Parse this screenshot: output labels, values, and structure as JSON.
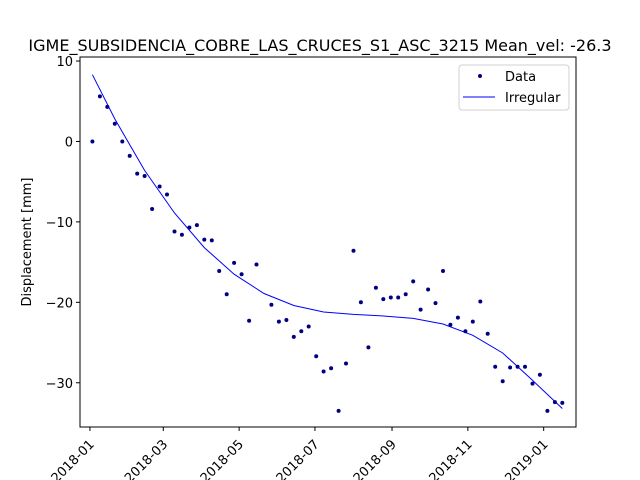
{
  "chart_data": {
    "type": "scatter",
    "title": "IGME_SUBSIDENCIA_COBRE_LAS_CRUCES_S1_ASC_3215     Mean_vel: -26.3",
    "xlabel": "",
    "ylabel": "Displacement [mm]",
    "xlim": [
      "2017-12-24",
      "2019-01-27"
    ],
    "ylim": [
      -35.5,
      10.5
    ],
    "x_ticks": [
      "2018-01",
      "2018-03",
      "2018-05",
      "2018-07",
      "2018-09",
      "2018-11",
      "2019-01"
    ],
    "x_tick_dates": [
      "2018-01-01",
      "2018-03-01",
      "2018-05-01",
      "2018-07-01",
      "2018-09-01",
      "2018-11-01",
      "2019-01-01"
    ],
    "y_ticks": [
      10,
      0,
      -10,
      -20,
      -30
    ],
    "y_tick_labels": [
      "10",
      "0",
      "−10",
      "−20",
      "−30"
    ],
    "grid": false,
    "legend": "top-right",
    "series": [
      {
        "name": "Data",
        "kind": "points",
        "color": "#000080",
        "points": [
          [
            "2018-01-03",
            0.0
          ],
          [
            "2018-01-09",
            5.6
          ],
          [
            "2018-01-15",
            4.3
          ],
          [
            "2018-01-21",
            2.2
          ],
          [
            "2018-01-27",
            0.0
          ],
          [
            "2018-02-02",
            -1.8
          ],
          [
            "2018-02-08",
            -4.0
          ],
          [
            "2018-02-14",
            -4.3
          ],
          [
            "2018-02-20",
            -8.4
          ],
          [
            "2018-02-26",
            -5.6
          ],
          [
            "2018-03-04",
            -6.6
          ],
          [
            "2018-03-10",
            -11.2
          ],
          [
            "2018-03-16",
            -11.6
          ],
          [
            "2018-03-22",
            -10.7
          ],
          [
            "2018-03-28",
            -10.4
          ],
          [
            "2018-04-03",
            -12.2
          ],
          [
            "2018-04-09",
            -12.3
          ],
          [
            "2018-04-15",
            -16.1
          ],
          [
            "2018-04-21",
            -19.0
          ],
          [
            "2018-04-27",
            -15.1
          ],
          [
            "2018-05-03",
            -16.5
          ],
          [
            "2018-05-09",
            -22.3
          ],
          [
            "2018-05-15",
            -15.3
          ],
          [
            "2018-05-27",
            -20.3
          ],
          [
            "2018-06-02",
            -22.4
          ],
          [
            "2018-06-08",
            -22.2
          ],
          [
            "2018-06-14",
            -24.3
          ],
          [
            "2018-06-20",
            -23.6
          ],
          [
            "2018-06-26",
            -23.0
          ],
          [
            "2018-07-02",
            -26.7
          ],
          [
            "2018-07-08",
            -28.6
          ],
          [
            "2018-07-14",
            -28.2
          ],
          [
            "2018-07-20",
            -33.5
          ],
          [
            "2018-07-26",
            -27.6
          ],
          [
            "2018-08-01",
            -13.6
          ],
          [
            "2018-08-07",
            -20.0
          ],
          [
            "2018-08-13",
            -25.6
          ],
          [
            "2018-08-19",
            -18.2
          ],
          [
            "2018-08-25",
            -19.6
          ],
          [
            "2018-08-31",
            -19.4
          ],
          [
            "2018-09-06",
            -19.4
          ],
          [
            "2018-09-12",
            -19.0
          ],
          [
            "2018-09-18",
            -17.4
          ],
          [
            "2018-09-24",
            -20.9
          ],
          [
            "2018-09-30",
            -18.4
          ],
          [
            "2018-10-06",
            -20.1
          ],
          [
            "2018-10-12",
            -16.1
          ],
          [
            "2018-10-18",
            -22.8
          ],
          [
            "2018-10-24",
            -21.9
          ],
          [
            "2018-10-30",
            -23.6
          ],
          [
            "2018-11-05",
            -22.4
          ],
          [
            "2018-11-11",
            -19.9
          ],
          [
            "2018-11-17",
            -23.9
          ],
          [
            "2018-11-23",
            -28.0
          ],
          [
            "2018-11-29",
            -29.8
          ],
          [
            "2018-12-05",
            -28.1
          ],
          [
            "2018-12-11",
            -28.0
          ],
          [
            "2018-12-17",
            -28.0
          ],
          [
            "2018-12-23",
            -30.1
          ],
          [
            "2018-12-29",
            -29.0
          ],
          [
            "2019-01-04",
            -33.5
          ],
          [
            "2019-01-10",
            -32.4
          ],
          [
            "2019-01-16",
            -32.5
          ]
        ]
      },
      {
        "name": "Irregular",
        "kind": "line",
        "color": "#0000ff",
        "points": [
          [
            "2018-01-03",
            8.3
          ],
          [
            "2018-01-21",
            2.8
          ],
          [
            "2018-02-14",
            -3.6
          ],
          [
            "2018-03-10",
            -8.9
          ],
          [
            "2018-04-03",
            -13.2
          ],
          [
            "2018-04-27",
            -16.5
          ],
          [
            "2018-05-21",
            -18.9
          ],
          [
            "2018-06-14",
            -20.4
          ],
          [
            "2018-07-08",
            -21.2
          ],
          [
            "2018-08-01",
            -21.5
          ],
          [
            "2018-08-25",
            -21.7
          ],
          [
            "2018-09-18",
            -22.0
          ],
          [
            "2018-10-12",
            -22.7
          ],
          [
            "2018-11-05",
            -24.1
          ],
          [
            "2018-11-29",
            -26.3
          ],
          [
            "2018-12-23",
            -29.7
          ],
          [
            "2019-01-16",
            -33.2
          ]
        ]
      }
    ]
  }
}
